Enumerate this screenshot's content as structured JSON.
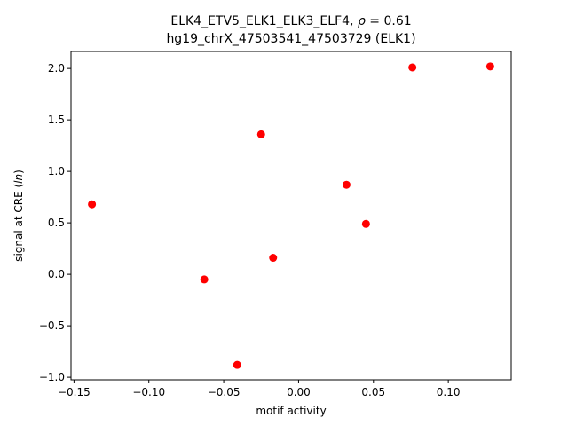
{
  "chart_data": {
    "type": "scatter",
    "title_line1": "ELK4_ETV5_ELK1_ELK3_ELF4, ",
    "title_rho_symbol": "ρ",
    "title_rho_value": " = 0.61",
    "title_line2": "hg19_chrX_47503541_47503729 (ELK1)",
    "xlabel": "motif activity",
    "ylabel_prefix": "signal at CRE (",
    "ylabel_italic": "ln",
    "ylabel_suffix": ")",
    "xlim": [
      -0.152,
      0.142
    ],
    "ylim": [
      -1.025,
      2.165
    ],
    "x_ticks": [
      -0.15,
      -0.1,
      -0.05,
      0.0,
      0.05,
      0.1
    ],
    "x_tick_labels": [
      "−0.15",
      "−0.10",
      "−0.05",
      "0.00",
      "0.05",
      "0.10"
    ],
    "y_ticks": [
      -1.0,
      -0.5,
      0.0,
      0.5,
      1.0,
      1.5,
      2.0
    ],
    "y_tick_labels": [
      "−1.0",
      "−0.5",
      "0.0",
      "0.5",
      "1.0",
      "1.5",
      "2.0"
    ],
    "marker_color": "#ff0000",
    "grid": false,
    "points": [
      {
        "x": -0.138,
        "y": 0.68
      },
      {
        "x": -0.063,
        "y": -0.05
      },
      {
        "x": -0.041,
        "y": -0.88
      },
      {
        "x": -0.025,
        "y": 1.36
      },
      {
        "x": -0.017,
        "y": 0.16
      },
      {
        "x": 0.032,
        "y": 0.87
      },
      {
        "x": 0.045,
        "y": 0.49
      },
      {
        "x": 0.076,
        "y": 2.01
      },
      {
        "x": 0.128,
        "y": 2.02
      }
    ]
  }
}
